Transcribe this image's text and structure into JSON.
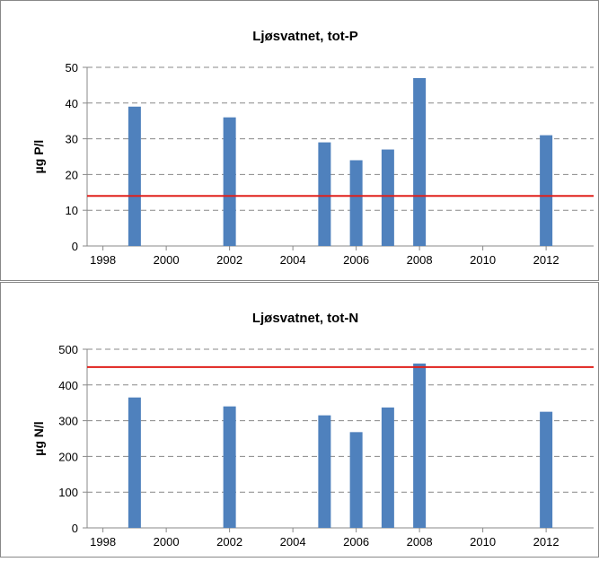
{
  "chart_data": [
    {
      "type": "bar",
      "title": "Ljøsvatnet, tot-P",
      "y_label": "µg P/l",
      "x": [
        1999,
        2002,
        2005,
        2006,
        2007,
        2008,
        2012
      ],
      "values": [
        39,
        36,
        29,
        24,
        27,
        47,
        31
      ],
      "color": "#4f81bd",
      "xlim": [
        1997.5,
        2013.5
      ],
      "xticks": [
        1998,
        2000,
        2002,
        2004,
        2006,
        2008,
        2010,
        2012
      ],
      "ylim": [
        0,
        50
      ],
      "yticks": [
        0,
        10,
        20,
        30,
        40,
        50
      ],
      "grid": true,
      "reference_line": {
        "value": 14,
        "color": "#e0201c"
      }
    },
    {
      "type": "bar",
      "title": "Ljøsvatnet, tot-N",
      "y_label": "µg N/l",
      "x": [
        1999,
        2002,
        2005,
        2006,
        2007,
        2008,
        2012
      ],
      "values": [
        365,
        340,
        315,
        268,
        337,
        460,
        325
      ],
      "color": "#4f81bd",
      "xlim": [
        1997.5,
        2013.5
      ],
      "xticks": [
        1998,
        2000,
        2002,
        2004,
        2006,
        2008,
        2010,
        2012
      ],
      "ylim": [
        0,
        500
      ],
      "yticks": [
        0,
        100,
        200,
        300,
        400,
        500
      ],
      "grid": true,
      "reference_line": {
        "value": 450,
        "color": "#e0201c"
      }
    }
  ]
}
